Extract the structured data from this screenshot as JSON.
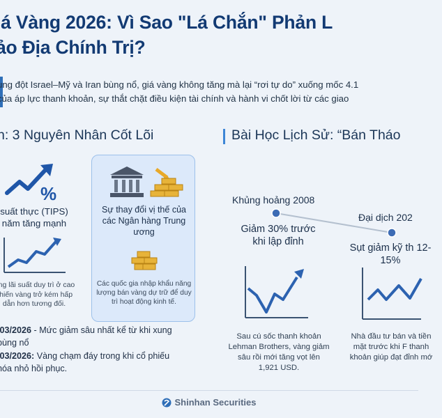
{
  "header": {
    "title_line1": "iá Vàng 2026: Vì Sao \"Lá Chắn\" Phản L",
    "title_line2": "ảo Địa Chính Trị?"
  },
  "intro": {
    "line1": "ung đột Israel–Mỹ và Iran bùng nổ, giá vàng không tăng mà lại “rơi tự do” xuống mốc 4.1",
    "line2": "của áp lực thanh khoản, sự thắt chặt điều kiện tài chính và hành vi chốt lời từ các giao"
  },
  "left_section": {
    "title": "n: 3 Nguyên Nhân Cốt Lõi",
    "card_a": {
      "heading": "suất thực (TIPS) năm tăng mạnh",
      "body": "ợng lãi suất duy trì ở cao khiến vàng trở kém hấp dẫn hơn tương đối."
    },
    "card_b": {
      "heading": "Sự thay đổi vị thế của các Ngân hàng Trung ương",
      "body": "Các quốc gia nhập khẩu năng lượng bán vàng dự trữ để duy trì hoạt động kinh tế."
    },
    "notes": [
      {
        "date": "/03/2026",
        "text": " - Mức giảm sâu nhất kể từ khi xung",
        "line2": "bùng nổ"
      },
      {
        "date": "/03/2026:",
        "text": " Vàng chạm đáy trong khi cổ phiếu",
        "line2": "hóa nhỏ hồi phục."
      }
    ]
  },
  "right_section": {
    "title": "Bài Học Lịch Sử: “Bán Tháo ",
    "events": [
      {
        "label": "Khủng hoảng 2008",
        "title": "Giảm 30% trước khi lập đỉnh",
        "desc": "Sau cú sốc thanh khoản Lehman Brothers, vàng giảm sâu rồi mới tăng vọt lên 1,921 USD."
      },
      {
        "label": "Đại dịch 202",
        "title": "Sụt giảm kỹ th 12-15%",
        "desc": "Nhà đầu tư bán và tiền mặt trước khi F thanh khoản giúp đạt đỉnh mớ"
      }
    ]
  },
  "footer": {
    "brand": "Shinhan Securities"
  },
  "colors": {
    "title": "#123a73",
    "accent": "#2f6fb8",
    "card_highlight": "#dce9fa",
    "gold": "#e8a92a",
    "chart_line": "#2c62b0"
  },
  "icons": [
    "trend-up-percent-icon",
    "line-chart-icon",
    "bank-building-icon",
    "gold-bars-icon",
    "down-arrow-icon",
    "v-chart-icon",
    "shinhan-logo-icon"
  ]
}
